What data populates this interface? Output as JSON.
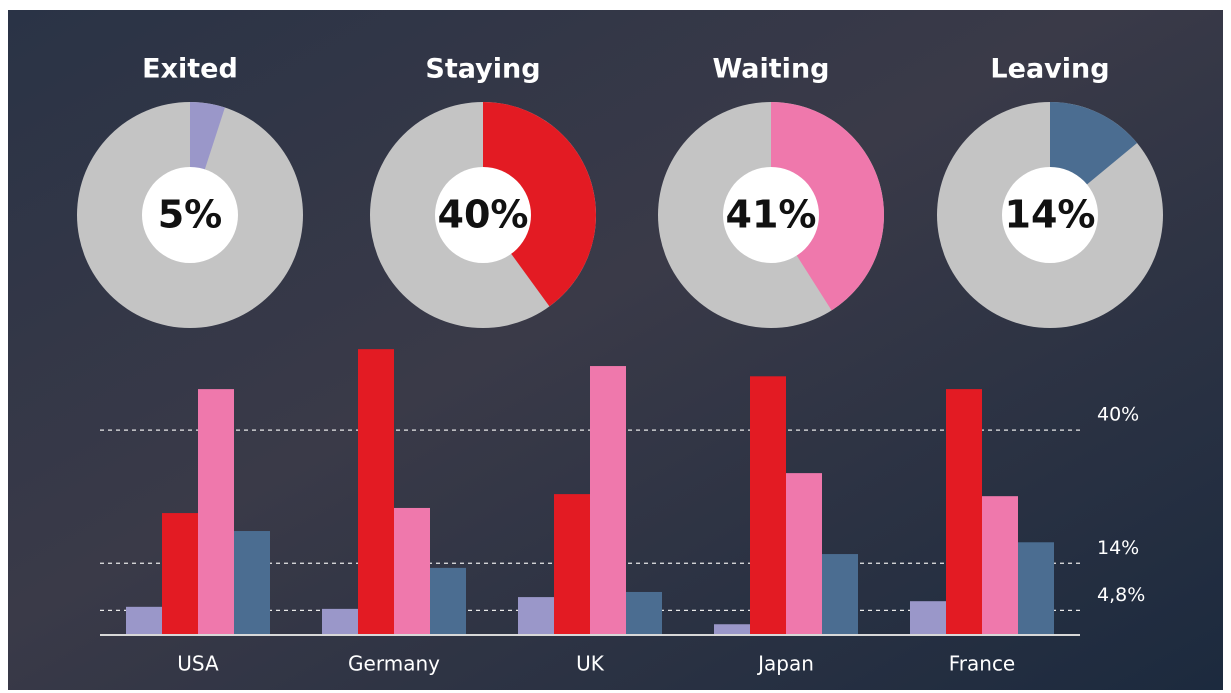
{
  "chart_data": [
    {
      "type": "pie",
      "title": "Exited",
      "values": [
        5
      ],
      "value_labels": [
        "5%"
      ],
      "colors": [
        "#9a97c9"
      ]
    },
    {
      "type": "pie",
      "title": "Staying",
      "values": [
        40
      ],
      "value_labels": [
        "40%"
      ],
      "colors": [
        "#e31b23"
      ]
    },
    {
      "type": "pie",
      "title": "Waiting",
      "values": [
        41
      ],
      "value_labels": [
        "41%"
      ],
      "colors": [
        "#ef78ac"
      ]
    },
    {
      "type": "pie",
      "title": "Leaving",
      "values": [
        14
      ],
      "value_labels": [
        "14%"
      ],
      "colors": [
        "#4b6d91"
      ]
    },
    {
      "type": "bar",
      "categories": [
        "USA",
        "Germany",
        "UK",
        "Japan",
        "France"
      ],
      "series": [
        {
          "color": "#9a97c9",
          "values": [
            5.5,
            5.1,
            7.4,
            2.1,
            6.6
          ]
        },
        {
          "color": "#e31b23",
          "values": [
            23.8,
            55.8,
            27.5,
            50.5,
            48
          ]
        },
        {
          "color": "#ef78ac",
          "values": [
            48,
            24.8,
            52.5,
            31.6,
            27.1
          ]
        },
        {
          "color": "#4b6d91",
          "values": [
            20.3,
            13.1,
            8.4,
            15.8,
            18.1
          ]
        }
      ],
      "ylim": [
        0,
        57
      ],
      "yticks": [
        {
          "value": 40,
          "label": "40%"
        },
        {
          "value": 14,
          "label": "14%"
        },
        {
          "value": 4.8,
          "label": "4,8%"
        }
      ],
      "grid": true
    }
  ]
}
